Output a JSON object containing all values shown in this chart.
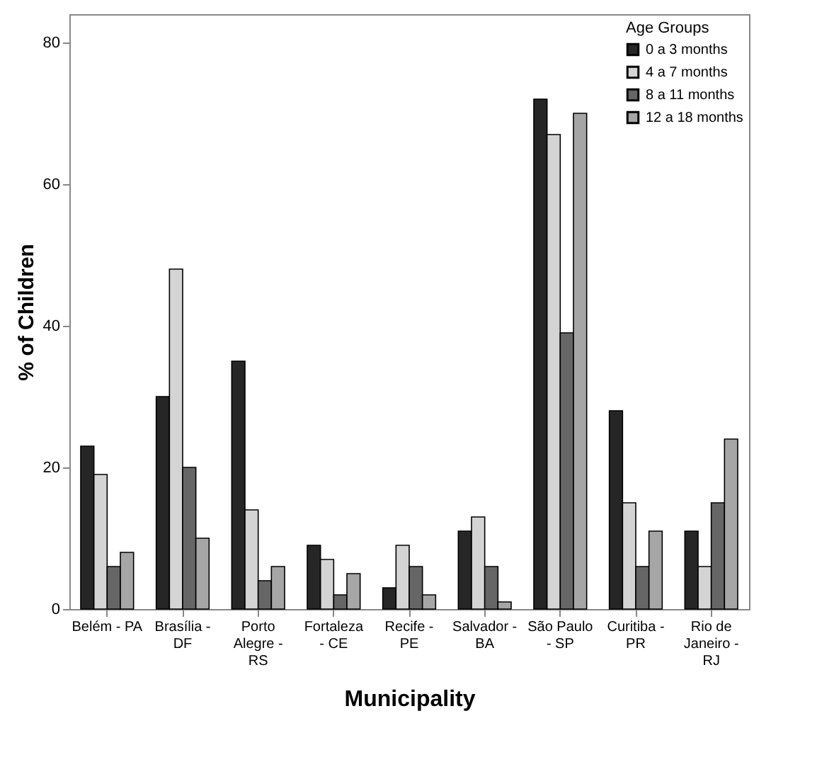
{
  "chart_data": {
    "type": "bar",
    "xlabel": "Municipality",
    "ylabel": "% of Children",
    "legend_title": "Age Groups",
    "legend": "top right",
    "grid": false,
    "categories": [
      "Belém - PA",
      "Brasília - DF",
      "Porto Alegre - RS",
      "Fortaleza - CE",
      "Recife - PE",
      "Salvador - BA",
      "São Paulo - SP",
      "Curitiba - PR",
      "Rio de Janeiro - RJ"
    ],
    "ylim": [
      0,
      84
    ],
    "yticks": [
      0,
      20,
      40,
      60,
      80
    ],
    "series": [
      {
        "name": "0 a 3 months",
        "color": "#262626",
        "values": [
          23,
          30,
          35,
          9,
          3,
          11,
          72,
          28,
          11
        ]
      },
      {
        "name": "4 a 7 months",
        "color": "#d4d4d4",
        "values": [
          19,
          48,
          14,
          7,
          9,
          13,
          67,
          15,
          6
        ]
      },
      {
        "name": "8 a 11 months",
        "color": "#666666",
        "values": [
          6,
          20,
          4,
          2,
          6,
          6,
          39,
          6,
          15
        ]
      },
      {
        "name": "12 a 18 months",
        "color": "#a6a6a6",
        "values": [
          8,
          10,
          6,
          5,
          2,
          1,
          70,
          11,
          24
        ]
      }
    ]
  }
}
